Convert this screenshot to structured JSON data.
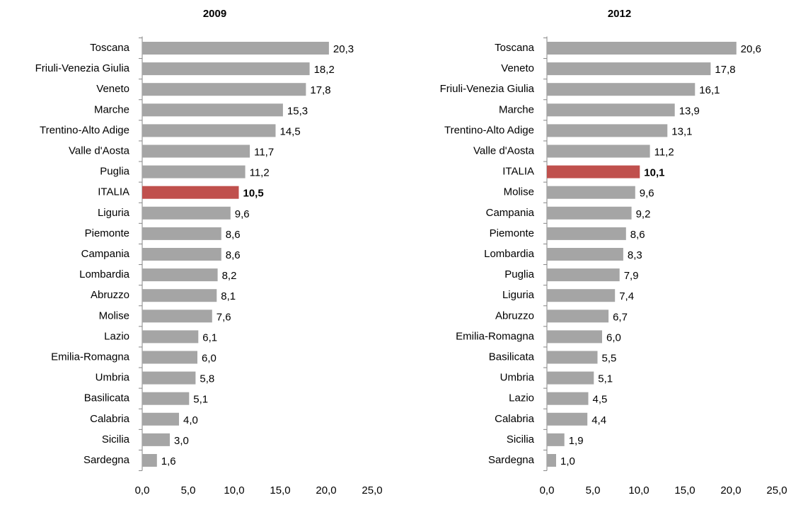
{
  "chart_data": [
    {
      "type": "bar",
      "orientation": "horizontal",
      "title": "2009",
      "categories": [
        "Toscana",
        "Friuli-Venezia Giulia",
        "Veneto",
        "Marche",
        "Trentino-Alto Adige",
        "Valle d'Aosta",
        "Puglia",
        "ITALIA",
        "Liguria",
        "Piemonte",
        "Campania",
        "Lombardia",
        "Abruzzo",
        "Molise",
        "Lazio",
        "Emilia-Romagna",
        "Umbria",
        "Basilicata",
        "Calabria",
        "Sicilia",
        "Sardegna"
      ],
      "values": [
        20.3,
        18.2,
        17.8,
        15.3,
        14.5,
        11.7,
        11.2,
        10.5,
        9.6,
        8.6,
        8.6,
        8.2,
        8.1,
        7.6,
        6.1,
        6.0,
        5.8,
        5.1,
        4.0,
        3.0,
        1.6
      ],
      "value_labels": [
        "20,3",
        "18,2",
        "17,8",
        "15,3",
        "14,5",
        "11,7",
        "11,2",
        "10,5",
        "9,6",
        "8,6",
        "8,6",
        "8,2",
        "8,1",
        "7,6",
        "6,1",
        "6,0",
        "5,8",
        "5,1",
        "4,0",
        "3,0",
        "1,6"
      ],
      "colors": [
        "#a5a5a5",
        "#a5a5a5",
        "#a5a5a5",
        "#a5a5a5",
        "#a5a5a5",
        "#a5a5a5",
        "#a5a5a5",
        "#c0504d",
        "#a5a5a5",
        "#a5a5a5",
        "#a5a5a5",
        "#a5a5a5",
        "#a5a5a5",
        "#a5a5a5",
        "#a5a5a5",
        "#a5a5a5",
        "#a5a5a5",
        "#a5a5a5",
        "#a5a5a5",
        "#a5a5a5",
        "#a5a5a5"
      ],
      "xlim": [
        0,
        25
      ],
      "xticks": [
        {
          "value": 0,
          "label": "0,0"
        },
        {
          "value": 5,
          "label": "5,0"
        },
        {
          "value": 10,
          "label": "10,0"
        },
        {
          "value": 15,
          "label": "15,0"
        },
        {
          "value": 20,
          "label": "20,0"
        },
        {
          "value": 25,
          "label": "25,0"
        }
      ]
    },
    {
      "type": "bar",
      "orientation": "horizontal",
      "title": "2012",
      "categories": [
        "Toscana",
        "Veneto",
        "Friuli-Venezia Giulia",
        "Marche",
        "Trentino-Alto Adige",
        "Valle d'Aosta",
        "ITALIA",
        "Molise",
        "Campania",
        "Piemonte",
        "Lombardia",
        "Puglia",
        "Liguria",
        "Abruzzo",
        "Emilia-Romagna",
        "Basilicata",
        "Umbria",
        "Lazio",
        "Calabria",
        "Sicilia",
        "Sardegna"
      ],
      "values": [
        20.6,
        17.8,
        16.1,
        13.9,
        13.1,
        11.2,
        10.1,
        9.6,
        9.2,
        8.6,
        8.3,
        7.9,
        7.4,
        6.7,
        6.0,
        5.5,
        5.1,
        4.5,
        4.4,
        1.9,
        1.0
      ],
      "value_labels": [
        "20,6",
        "17,8",
        "16,1",
        "13,9",
        "13,1",
        "11,2",
        "10,1",
        "9,6",
        "9,2",
        "8,6",
        "8,3",
        "7,9",
        "7,4",
        "6,7",
        "6,0",
        "5,5",
        "5,1",
        "4,5",
        "4,4",
        "1,9",
        "1,0"
      ],
      "colors": [
        "#a5a5a5",
        "#a5a5a5",
        "#a5a5a5",
        "#a5a5a5",
        "#a5a5a5",
        "#a5a5a5",
        "#c0504d",
        "#a5a5a5",
        "#a5a5a5",
        "#a5a5a5",
        "#a5a5a5",
        "#a5a5a5",
        "#a5a5a5",
        "#a5a5a5",
        "#a5a5a5",
        "#a5a5a5",
        "#a5a5a5",
        "#a5a5a5",
        "#a5a5a5",
        "#a5a5a5",
        "#a5a5a5"
      ],
      "xlim": [
        0,
        25
      ],
      "xticks": [
        {
          "value": 0,
          "label": "0,0"
        },
        {
          "value": 5,
          "label": "5,0"
        },
        {
          "value": 10,
          "label": "10,0"
        },
        {
          "value": 15,
          "label": "15,0"
        },
        {
          "value": 20,
          "label": "20,0"
        },
        {
          "value": 25,
          "label": "25,0"
        }
      ]
    }
  ]
}
